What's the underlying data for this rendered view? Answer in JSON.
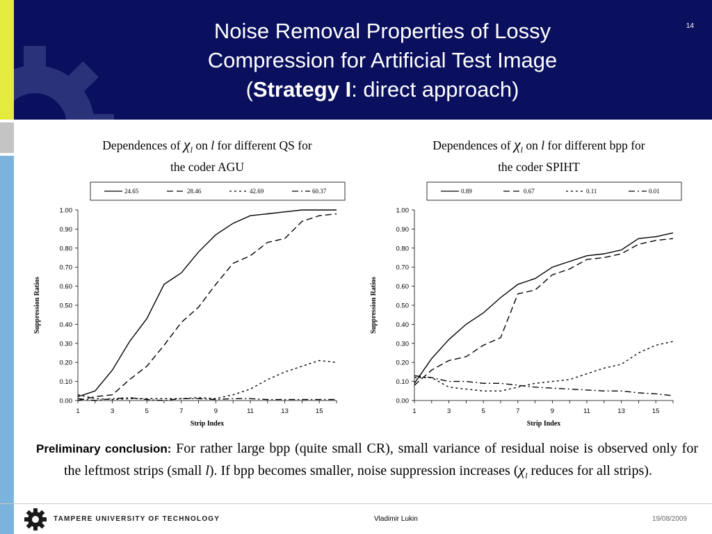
{
  "slide": {
    "number": "14",
    "title_line1": "Noise Removal Properties of Lossy",
    "title_line2": "Compression for Artificial Test Image",
    "title_paren_open": "(",
    "title_strategy": "Strategy I",
    "title_rest": ": direct approach)"
  },
  "charts_header": [
    {
      "pre": "Dependences of",
      "symbol": "χ",
      "sub": "l",
      "mid": "on",
      "var": "l",
      "post": "for different QS for",
      "line2": "the coder AGU"
    },
    {
      "pre": "Dependences of",
      "symbol": "χ",
      "sub": "l",
      "mid": "on",
      "var": "l",
      "post": "for different bpp for",
      "line2": "the coder SPIHT"
    }
  ],
  "chart_data": [
    {
      "type": "line",
      "xlabel": "Strip Index",
      "ylabel": "Suppression  Ratios",
      "ylim": [
        0,
        1
      ],
      "xlim": [
        1,
        16
      ],
      "xticks": [
        1,
        3,
        5,
        7,
        9,
        11,
        13,
        15
      ],
      "yticks": [
        "0.00",
        "0.10",
        "0.20",
        "0.30",
        "0.40",
        "0.50",
        "0.60",
        "0.70",
        "0.80",
        "0.90",
        "1.00"
      ],
      "legend_position": "top",
      "x": [
        1,
        2,
        3,
        4,
        5,
        6,
        7,
        8,
        9,
        10,
        11,
        12,
        13,
        14,
        15,
        16
      ],
      "series": [
        {
          "name": "24.65",
          "dash": "solid",
          "values": [
            0.02,
            0.05,
            0.16,
            0.31,
            0.43,
            0.61,
            0.67,
            0.78,
            0.87,
            0.93,
            0.97,
            0.98,
            0.99,
            1.0,
            1.0,
            1.0
          ]
        },
        {
          "name": "28.46",
          "dash": "dash",
          "values": [
            0.0,
            0.02,
            0.03,
            0.11,
            0.18,
            0.29,
            0.41,
            0.49,
            0.61,
            0.72,
            0.76,
            0.83,
            0.85,
            0.94,
            0.97,
            0.98
          ]
        },
        {
          "name": "42.69",
          "dash": "dot",
          "values": [
            0.03,
            0.01,
            0.005,
            0.01,
            0.01,
            0.01,
            0.01,
            0.015,
            0.01,
            0.03,
            0.06,
            0.11,
            0.15,
            0.18,
            0.21,
            0.2
          ]
        },
        {
          "name": "60.37",
          "dash": "dashdot",
          "values": [
            0.01,
            0.0,
            0.01,
            0.015,
            0.005,
            0.0,
            0.01,
            0.01,
            0.005,
            0.01,
            0.01,
            0.005,
            0.005,
            0.005,
            0.005,
            0.005
          ]
        }
      ]
    },
    {
      "type": "line",
      "xlabel": "Strip Index",
      "ylabel": "Suppression  Ratios",
      "ylim": [
        0,
        1
      ],
      "xlim": [
        1,
        16
      ],
      "xticks": [
        1,
        3,
        5,
        7,
        9,
        11,
        13,
        15
      ],
      "yticks": [
        "0.00",
        "0.10",
        "0.20",
        "0.30",
        "0.40",
        "0.50",
        "0.60",
        "0.70",
        "0.80",
        "0.90",
        "1.00"
      ],
      "legend_position": "top",
      "x": [
        1,
        2,
        3,
        4,
        5,
        6,
        7,
        8,
        9,
        10,
        11,
        12,
        13,
        14,
        15,
        16
      ],
      "series": [
        {
          "name": "0.89",
          "dash": "solid",
          "values": [
            0.09,
            0.22,
            0.32,
            0.4,
            0.46,
            0.54,
            0.61,
            0.64,
            0.7,
            0.73,
            0.76,
            0.77,
            0.79,
            0.85,
            0.86,
            0.88
          ]
        },
        {
          "name": "0.67",
          "dash": "dash",
          "values": [
            0.08,
            0.16,
            0.21,
            0.23,
            0.29,
            0.33,
            0.56,
            0.58,
            0.66,
            0.69,
            0.74,
            0.75,
            0.77,
            0.82,
            0.84,
            0.85
          ]
        },
        {
          "name": "0.11",
          "dash": "dot",
          "values": [
            0.12,
            0.12,
            0.07,
            0.06,
            0.05,
            0.05,
            0.07,
            0.09,
            0.1,
            0.11,
            0.14,
            0.17,
            0.19,
            0.25,
            0.29,
            0.31
          ]
        },
        {
          "name": "0.01",
          "dash": "dashdot",
          "values": [
            0.13,
            0.12,
            0.1,
            0.1,
            0.09,
            0.09,
            0.08,
            0.07,
            0.065,
            0.06,
            0.055,
            0.05,
            0.05,
            0.04,
            0.035,
            0.025
          ]
        }
      ]
    }
  ],
  "conclusion": {
    "lead": "Preliminary conclusion:",
    "text1": " For rather large bpp (quite small CR), small variance of residual noise is observed only for the leftmost strips (small ",
    "var": "l",
    "text2": "). If bpp becomes smaller, noise suppression increases (",
    "symbol": "χ",
    "sub": "l",
    "text3": " reduces for all strips)."
  },
  "footer": {
    "university": "TAMPERE UNIVERSITY OF TECHNOLOGY",
    "author": "Vladimir Lukin",
    "date": "19/08/2009"
  },
  "colors": {
    "header_bg": "#0a0f5e",
    "strip_yellow": "#e5eb3c",
    "strip_gray": "#c4c4c4",
    "strip_blue": "#7ab4dc",
    "gear": "#2a327a"
  }
}
